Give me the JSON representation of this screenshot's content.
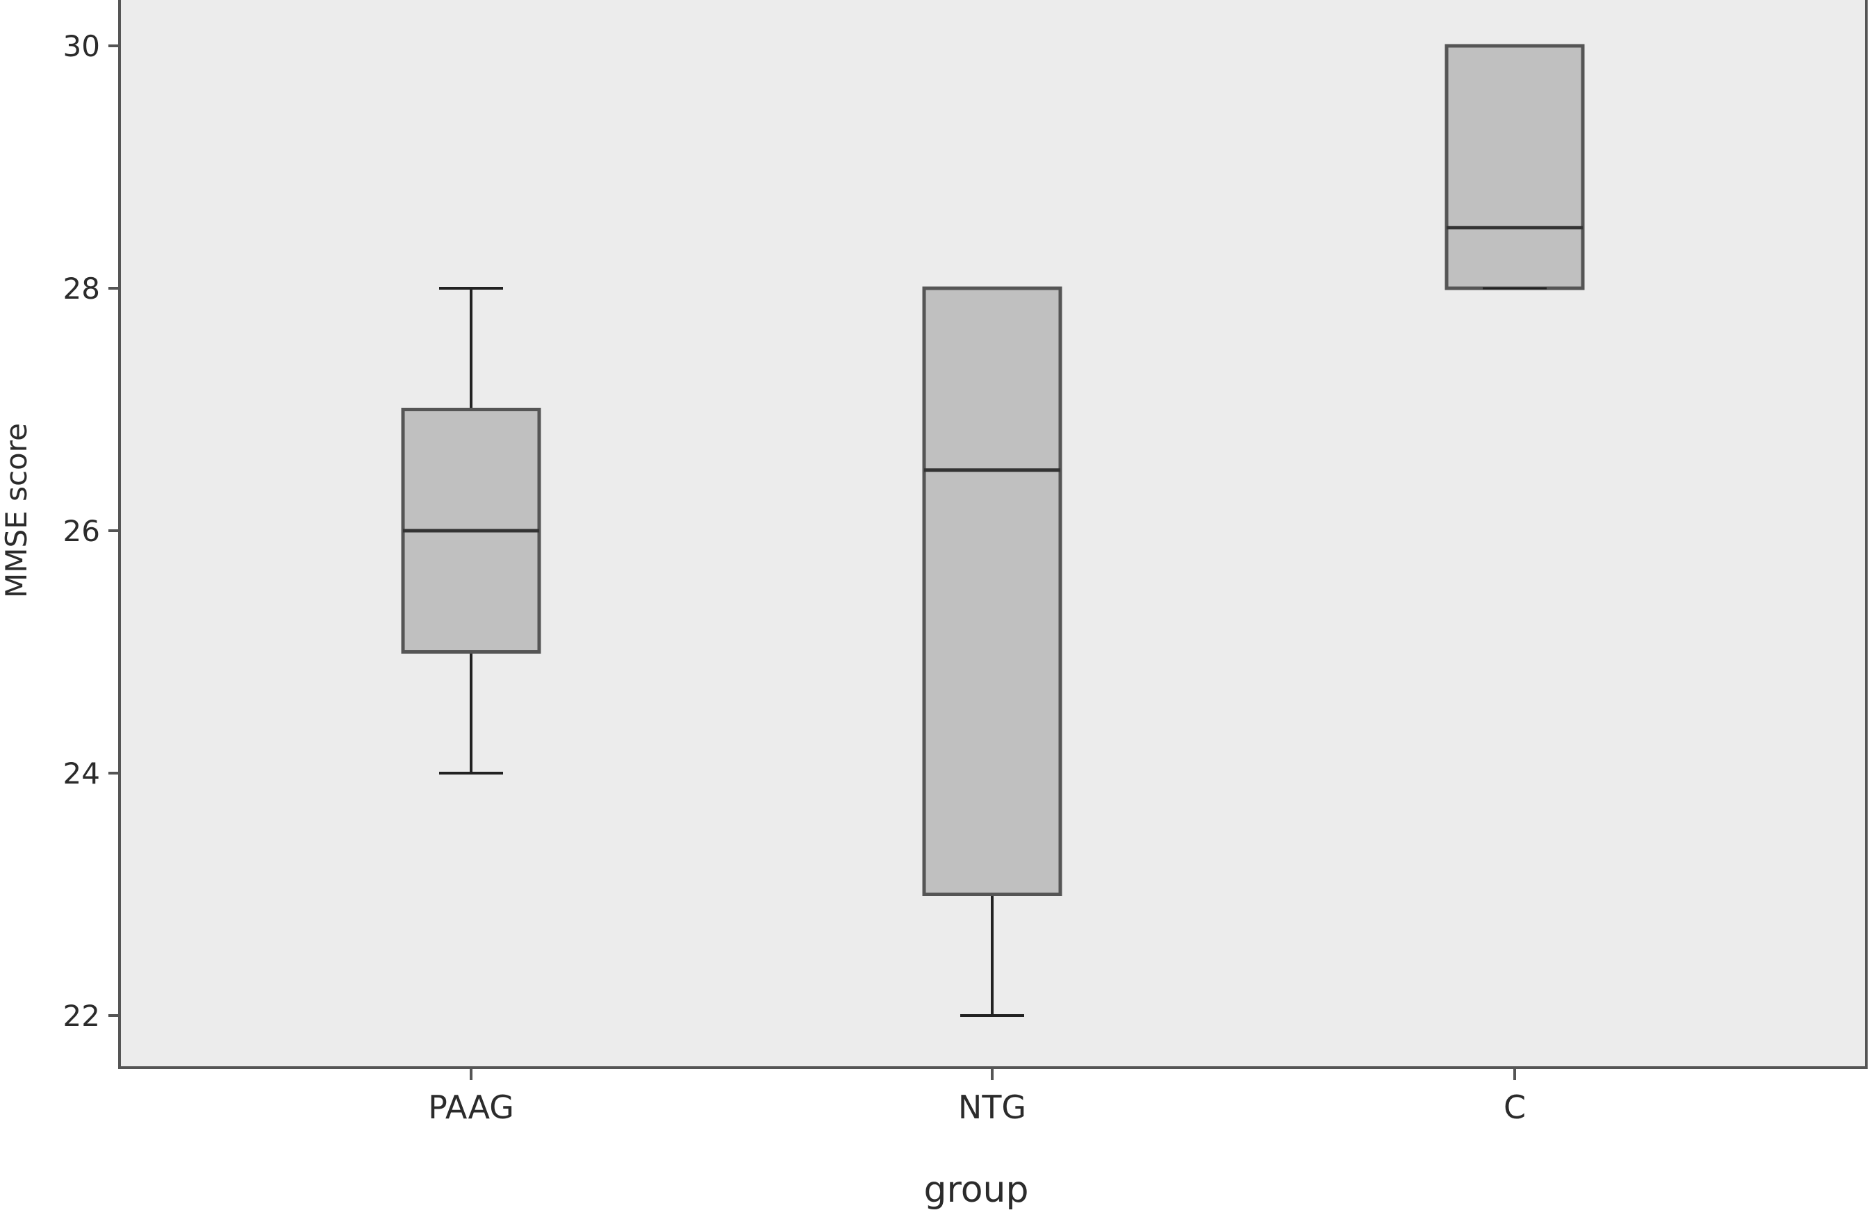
{
  "chart_data": {
    "type": "boxplot",
    "title": "",
    "xlabel": "group",
    "ylabel": "MMSE score",
    "categories": [
      "PAAG",
      "NTG",
      "C"
    ],
    "boxes": [
      {
        "category": "PAAG",
        "whisker_low": 24,
        "q1": 25,
        "median": 26,
        "q3": 27,
        "whisker_high": 28
      },
      {
        "category": "NTG",
        "whisker_low": 22,
        "q1": 23,
        "median": 26.5,
        "q3": 28,
        "whisker_high": 28
      },
      {
        "category": "C",
        "whisker_low": 28,
        "q1": 28,
        "median": 28.5,
        "q3": 30,
        "whisker_high": 30
      }
    ],
    "y_ticks": [
      22,
      24,
      26,
      28,
      30
    ],
    "y_tick_labels": [
      "22",
      "24",
      "26",
      "28",
      "30"
    ],
    "ylim": [
      21.58,
      30.38
    ],
    "grid": false,
    "legend": "none",
    "colors": {
      "plot_background": "#ececec",
      "box_fill": "#c0c0c0",
      "box_stroke": "#555555",
      "median_line": "#333333",
      "whisker": "#222222",
      "axis": "#555555"
    }
  }
}
